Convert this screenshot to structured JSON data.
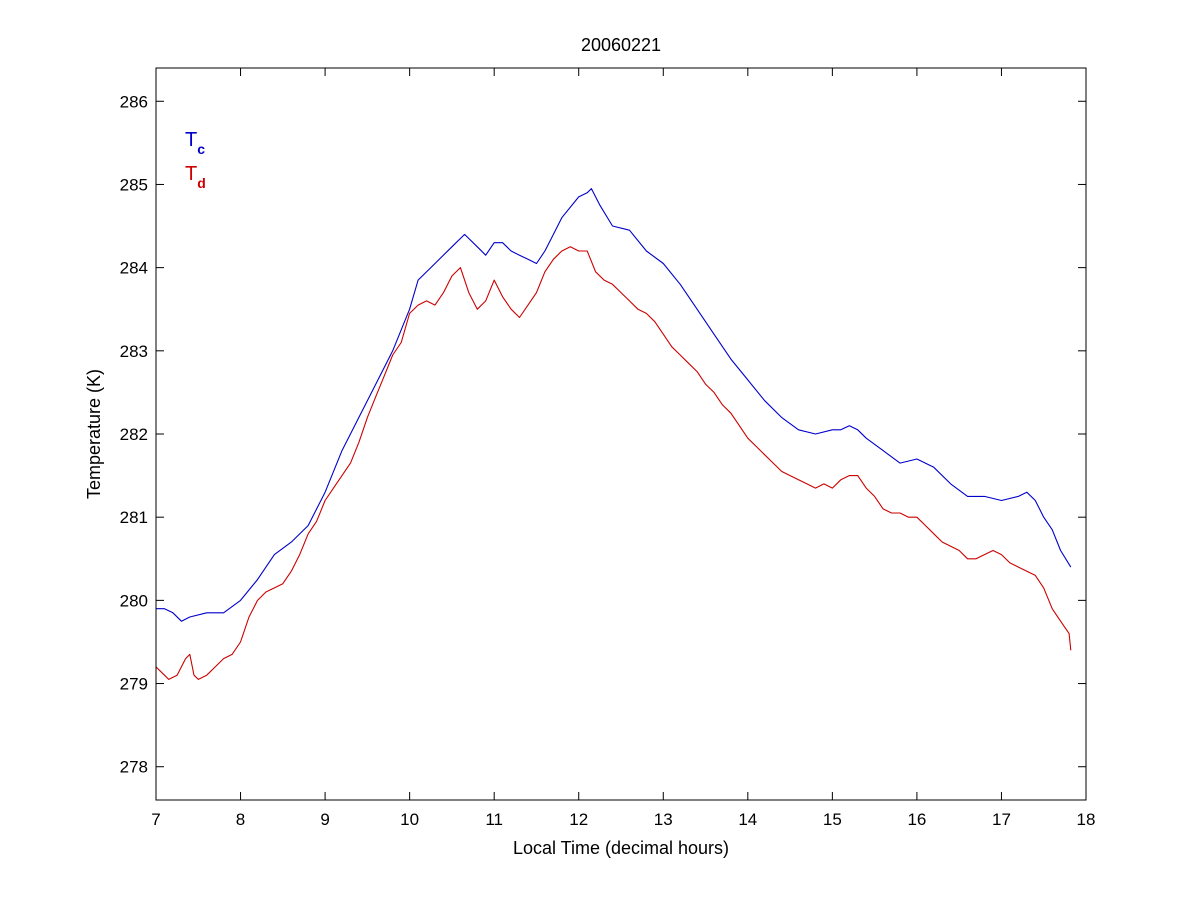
{
  "chart_data": {
    "type": "line",
    "title": "20060221",
    "xlabel": "Local Time (decimal hours)",
    "ylabel": "Temperature (K)",
    "xlim": [
      7,
      18
    ],
    "ylim": [
      277.6,
      286.4
    ],
    "xticks": [
      7,
      8,
      9,
      10,
      11,
      12,
      13,
      14,
      15,
      16,
      17,
      18
    ],
    "yticks": [
      278,
      279,
      280,
      281,
      282,
      283,
      284,
      285,
      286
    ],
    "xtick_labels": [
      "7",
      "8",
      "9",
      "10",
      "11",
      "12",
      "13",
      "14",
      "15",
      "16",
      "17",
      "18"
    ],
    "ytick_labels": [
      "278",
      "279",
      "280",
      "281",
      "282",
      "283",
      "284",
      "285",
      "286"
    ],
    "grid": false,
    "legend_position": "top-left",
    "series": [
      {
        "name": "Tc",
        "label_main": "T",
        "label_sub": "c",
        "color": "#0000cc",
        "x": [
          7.0,
          7.1,
          7.2,
          7.3,
          7.4,
          7.6,
          7.8,
          8.0,
          8.2,
          8.4,
          8.6,
          8.8,
          9.0,
          9.2,
          9.4,
          9.6,
          9.8,
          10.0,
          10.1,
          10.3,
          10.5,
          10.65,
          10.8,
          10.9,
          11.0,
          11.1,
          11.2,
          11.3,
          11.4,
          11.5,
          11.6,
          11.7,
          11.8,
          12.0,
          12.1,
          12.15,
          12.25,
          12.4,
          12.6,
          12.8,
          13.0,
          13.2,
          13.4,
          13.6,
          13.8,
          14.0,
          14.2,
          14.4,
          14.6,
          14.8,
          15.0,
          15.1,
          15.2,
          15.3,
          15.4,
          15.6,
          15.8,
          16.0,
          16.2,
          16.4,
          16.6,
          16.8,
          17.0,
          17.2,
          17.3,
          17.4,
          17.5,
          17.6,
          17.7,
          17.82
        ],
        "values": [
          279.9,
          279.9,
          279.85,
          279.75,
          279.8,
          279.85,
          279.85,
          280.0,
          280.25,
          280.55,
          280.7,
          280.9,
          281.3,
          281.8,
          282.2,
          282.6,
          283.0,
          283.5,
          283.85,
          284.05,
          284.25,
          284.4,
          284.25,
          284.15,
          284.3,
          284.3,
          284.2,
          284.15,
          284.1,
          284.05,
          284.2,
          284.4,
          284.6,
          284.85,
          284.9,
          284.95,
          284.75,
          284.5,
          284.45,
          284.2,
          284.05,
          283.8,
          283.5,
          283.2,
          282.9,
          282.65,
          282.4,
          282.2,
          282.05,
          282.0,
          282.05,
          282.05,
          282.1,
          282.05,
          281.95,
          281.8,
          281.65,
          281.7,
          281.6,
          281.4,
          281.25,
          281.25,
          281.2,
          281.25,
          281.3,
          281.2,
          281.0,
          280.85,
          280.6,
          280.4
        ]
      },
      {
        "name": "Td",
        "label_main": "T",
        "label_sub": "d",
        "color": "#cc0000",
        "x": [
          7.0,
          7.1,
          7.15,
          7.25,
          7.35,
          7.4,
          7.45,
          7.5,
          7.6,
          7.7,
          7.8,
          7.9,
          8.0,
          8.1,
          8.2,
          8.3,
          8.4,
          8.5,
          8.6,
          8.7,
          8.8,
          8.9,
          9.0,
          9.1,
          9.2,
          9.3,
          9.4,
          9.5,
          9.6,
          9.7,
          9.8,
          9.9,
          10.0,
          10.1,
          10.2,
          10.3,
          10.4,
          10.5,
          10.6,
          10.7,
          10.8,
          10.9,
          11.0,
          11.1,
          11.2,
          11.3,
          11.4,
          11.5,
          11.6,
          11.7,
          11.8,
          11.9,
          12.0,
          12.1,
          12.2,
          12.3,
          12.4,
          12.5,
          12.6,
          12.7,
          12.8,
          12.9,
          13.0,
          13.1,
          13.2,
          13.3,
          13.4,
          13.5,
          13.6,
          13.7,
          13.8,
          13.9,
          14.0,
          14.1,
          14.2,
          14.3,
          14.4,
          14.5,
          14.6,
          14.7,
          14.8,
          14.9,
          15.0,
          15.1,
          15.2,
          15.3,
          15.4,
          15.5,
          15.6,
          15.7,
          15.8,
          15.9,
          16.0,
          16.1,
          16.2,
          16.3,
          16.4,
          16.5,
          16.6,
          16.7,
          16.8,
          16.9,
          17.0,
          17.1,
          17.2,
          17.3,
          17.4,
          17.5,
          17.6,
          17.7,
          17.8,
          17.82
        ],
        "values": [
          279.2,
          279.1,
          279.05,
          279.1,
          279.3,
          279.35,
          279.1,
          279.05,
          279.1,
          279.2,
          279.3,
          279.35,
          279.5,
          279.8,
          280.0,
          280.1,
          280.15,
          280.2,
          280.35,
          280.55,
          280.8,
          280.95,
          281.2,
          281.35,
          281.5,
          281.65,
          281.9,
          282.2,
          282.45,
          282.7,
          282.95,
          283.1,
          283.45,
          283.55,
          283.6,
          283.55,
          283.7,
          283.9,
          284.0,
          283.7,
          283.5,
          283.6,
          283.85,
          283.65,
          283.5,
          283.4,
          283.55,
          283.7,
          283.95,
          284.1,
          284.2,
          284.25,
          284.2,
          284.2,
          283.95,
          283.85,
          283.8,
          283.7,
          283.6,
          283.5,
          283.45,
          283.35,
          283.2,
          283.05,
          282.95,
          282.85,
          282.75,
          282.6,
          282.5,
          282.35,
          282.25,
          282.1,
          281.95,
          281.85,
          281.75,
          281.65,
          281.55,
          281.5,
          281.45,
          281.4,
          281.35,
          281.4,
          281.35,
          281.45,
          281.5,
          281.5,
          281.35,
          281.25,
          281.1,
          281.05,
          281.05,
          281.0,
          281.0,
          280.9,
          280.8,
          280.7,
          280.65,
          280.6,
          280.5,
          280.5,
          280.55,
          280.6,
          280.55,
          280.45,
          280.4,
          280.35,
          280.3,
          280.15,
          279.9,
          279.75,
          279.6,
          279.4
        ]
      }
    ]
  }
}
